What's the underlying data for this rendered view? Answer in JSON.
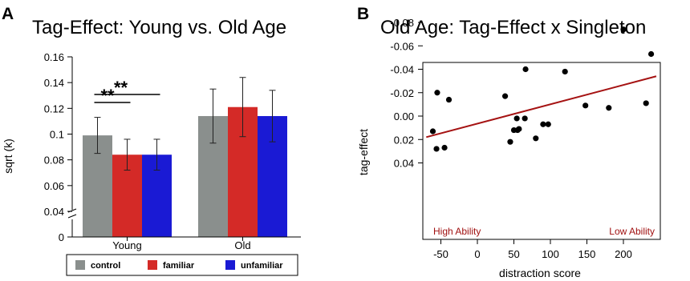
{
  "colors": {
    "control": "#8a8f8d",
    "familiar": "#d42a27",
    "unfamiliar": "#1a1ad4",
    "trend": "#a51212",
    "annotation": "#a01010"
  },
  "chart_data": [
    {
      "panel": "A",
      "type": "bar",
      "title": "Tag-Effect: Young vs. Old Age",
      "xlabel": "",
      "ylabel": "sqrt (k)",
      "categories": [
        "Young",
        "Old"
      ],
      "ylim": [
        0,
        0.16
      ],
      "yticks": [
        "0",
        "0.04",
        "0.06",
        "0.08",
        "0.1",
        "0.12",
        "0.14",
        "0.16"
      ],
      "axis_break": true,
      "legend_position": "bottom",
      "series": [
        {
          "name": "control",
          "values": [
            0.099,
            0.114
          ],
          "err": [
            0.014,
            0.021
          ]
        },
        {
          "name": "familiar",
          "values": [
            0.084,
            0.121
          ],
          "err": [
            0.012,
            0.023
          ]
        },
        {
          "name": "unfamiliar",
          "values": [
            0.084,
            0.114
          ],
          "err": [
            0.012,
            0.02
          ]
        }
      ],
      "significance": [
        {
          "group": "Young",
          "from": "control",
          "to": "familiar",
          "label": "**"
        },
        {
          "group": "Young",
          "from": "control",
          "to": "unfamiliar",
          "label": "**"
        }
      ]
    },
    {
      "panel": "B",
      "type": "scatter",
      "title": "Old Age: Tag-Effect x Singleton",
      "xlabel": "distraction score",
      "ylabel": "tag-effect",
      "xlim": [
        -70,
        245
      ],
      "ylim": [
        -0.1,
        0.045
      ],
      "xticks": [
        "-50",
        "0",
        "50",
        "100",
        "150",
        "200"
      ],
      "yticks": [
        "0.04",
        "0.02",
        "0.00",
        "-0.02",
        "-0.04",
        "-0.06",
        "-0.08"
      ],
      "annotations": [
        "High Ability",
        "Low Ability"
      ],
      "points": [
        [
          -61,
          0.013
        ],
        [
          -56,
          0.028
        ],
        [
          -55,
          -0.02
        ],
        [
          -45,
          0.027
        ],
        [
          -39,
          -0.014
        ],
        [
          38,
          -0.017
        ],
        [
          45,
          0.022
        ],
        [
          50,
          0.012
        ],
        [
          54,
          0.002
        ],
        [
          55,
          0.012
        ],
        [
          57,
          0.011
        ],
        [
          65,
          0.002
        ],
        [
          66,
          -0.04
        ],
        [
          80,
          0.019
        ],
        [
          90,
          0.007
        ],
        [
          97,
          0.007
        ],
        [
          120,
          -0.038
        ],
        [
          148,
          -0.009
        ],
        [
          180,
          -0.007
        ],
        [
          200,
          -0.074
        ],
        [
          231,
          -0.011
        ],
        [
          238,
          -0.053
        ]
      ],
      "trend_line": [
        [
          -70,
          0.018
        ],
        [
          245,
          -0.034
        ]
      ]
    }
  ]
}
